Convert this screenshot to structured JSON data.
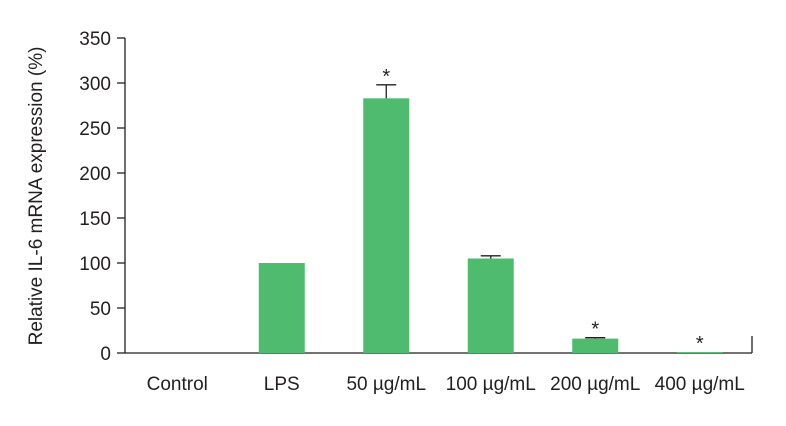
{
  "chart_data": {
    "type": "bar",
    "title": "",
    "xlabel": "",
    "ylabel": "Relative IL-6 mRNA expression (%)",
    "ylim": [
      0,
      350
    ],
    "yticks": [
      0,
      50,
      100,
      150,
      200,
      250,
      300,
      350
    ],
    "categories": [
      "Control",
      "LPS",
      "50 µg/mL",
      "100 µg/mL",
      "200 µg/mL",
      "400 µg/mL"
    ],
    "values": [
      0,
      100,
      283,
      105,
      16,
      1
    ],
    "error_upper": [
      null,
      null,
      298,
      108,
      17,
      null
    ],
    "significance": [
      "",
      "",
      "*",
      "",
      "*",
      "*"
    ],
    "bar_color": "#4fbb6e",
    "grid": false
  }
}
